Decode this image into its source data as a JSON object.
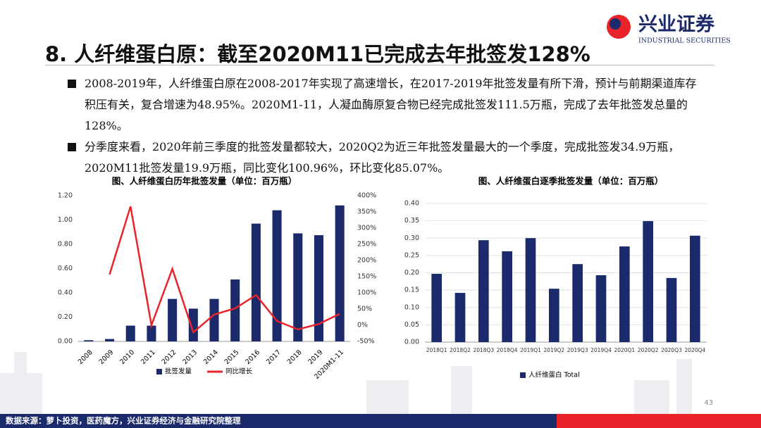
{
  "header": {
    "title": "8. 人纤维蛋白原：截至2020M11已完成去年批签发128%",
    "logo_cn": "兴业证券",
    "logo_en": "INDUSTRIAL SECURITIES"
  },
  "bullets": [
    "2008-2019年，人纤维蛋白原在2008-2017年实现了高速增长，在2017-2019年批签发量有所下滑，预计与前期渠道库存积压有关，复合增速为48.95%。2020M1-11，人凝血酶原复合物已经完成批签发111.5万瓶，完成了去年批签发总量的128%。",
    "分季度来看，2020年前三季度的批签发量都较大，2020Q2为近三年批签发量最大的一个季度，完成批签发34.9万瓶，2020M11批签发量19.9万瓶，同比变化100.96%，环比变化85.07%。"
  ],
  "chart_data": [
    {
      "type": "bar",
      "title": "图、人纤维蛋白历年批签发量（单位：百万瓶）",
      "categories": [
        "2008",
        "2009",
        "2010",
        "2011",
        "2012",
        "2013",
        "2014",
        "2015",
        "2016",
        "2017",
        "2018",
        "2019",
        "2020M1-11"
      ],
      "series": [
        {
          "name": "批签发量",
          "color": "#1b2a6b",
          "values": [
            0.01,
            0.02,
            0.13,
            0.13,
            0.35,
            0.27,
            0.35,
            0.51,
            0.97,
            1.08,
            0.89,
            0.875,
            1.12
          ]
        },
        {
          "name": "同比增长",
          "color": "#e8242a",
          "type": "line",
          "axis": "y2",
          "values": [
            null,
            157,
            367,
            0,
            174,
            -22,
            33,
            52,
            93,
            13,
            -13,
            4,
            35
          ]
        }
      ],
      "ylim": [
        0,
        1.2
      ],
      "yticks": [
        {
          "value": 0,
          "label": "0.00"
        },
        {
          "value": 0.2,
          "label": "0.20"
        },
        {
          "value": 0.4,
          "label": "0.40"
        },
        {
          "value": 0.6,
          "label": "0.60"
        },
        {
          "value": 0.8,
          "label": "0.80"
        },
        {
          "value": 1,
          "label": "1.00"
        },
        {
          "value": 1.2,
          "label": "1.20"
        }
      ],
      "y2lim": [
        -50,
        400
      ],
      "y2ticks": [
        {
          "value": -50,
          "label": "-50%"
        },
        {
          "value": 0,
          "label": "0%"
        },
        {
          "value": 50,
          "label": "50%"
        },
        {
          "value": 100,
          "label": "100%"
        },
        {
          "value": 150,
          "label": "150%"
        },
        {
          "value": 200,
          "label": "200%"
        },
        {
          "value": 250,
          "label": "250%"
        },
        {
          "value": 300,
          "label": "300%"
        },
        {
          "value": 350,
          "label": "350%"
        },
        {
          "value": 400,
          "label": "400%"
        }
      ],
      "grid": false
    },
    {
      "type": "bar",
      "title": "图、人纤维蛋白逐季批签发量（单位：百万瓶）",
      "categories": [
        "2018Q1",
        "2018Q2",
        "2018Q3",
        "2018Q4",
        "2019Q1",
        "2019Q2",
        "2019Q3",
        "2019Q4",
        "2020Q1",
        "2020Q2",
        "2020Q3",
        "2020Q4"
      ],
      "series": [
        {
          "name": "人纤维蛋白 Total",
          "color": "#1b2a6b",
          "values": [
            0.197,
            0.142,
            0.294,
            0.262,
            0.3,
            0.154,
            0.225,
            0.193,
            0.276,
            0.349,
            0.185,
            0.307
          ]
        }
      ],
      "ylim": [
        0,
        0.4
      ],
      "yticks": [
        {
          "value": 0,
          "label": "0.00"
        },
        {
          "value": 0.05,
          "label": "0.05"
        },
        {
          "value": 0.1,
          "label": "0.10"
        },
        {
          "value": 0.15,
          "label": "0.15"
        },
        {
          "value": 0.2,
          "label": "0.20"
        },
        {
          "value": 0.25,
          "label": "0.25"
        },
        {
          "value": 0.3,
          "label": "0.30"
        },
        {
          "value": 0.35,
          "label": "0.35"
        },
        {
          "value": 0.4,
          "label": "0.40"
        }
      ],
      "grid": true
    }
  ],
  "footer": {
    "source": "数据来源：萝卜投资，医药魔方，兴业证券经济与金融研究院整理",
    "page": "43"
  }
}
